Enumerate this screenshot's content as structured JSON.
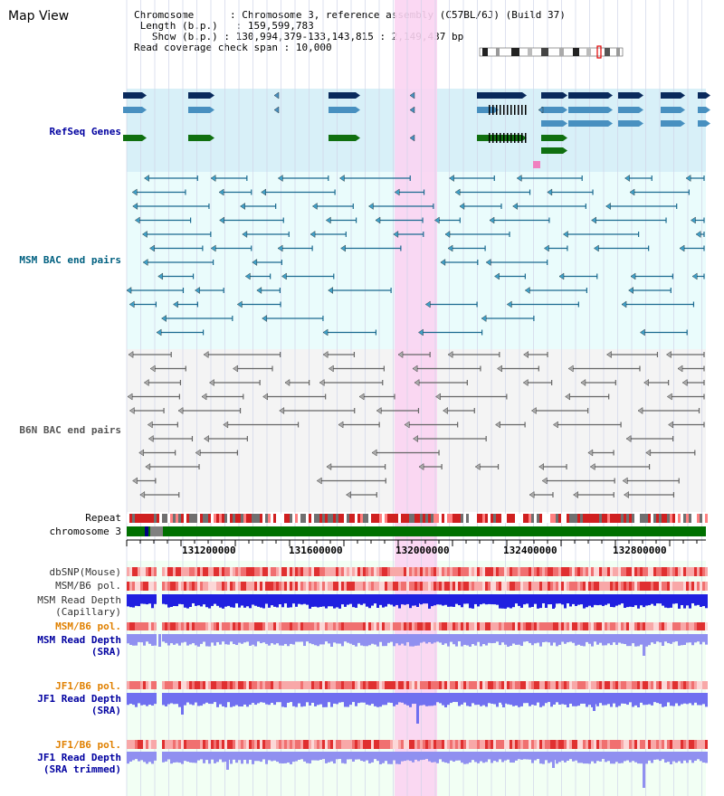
{
  "title": "Map View",
  "info": {
    "chromosome_label": "Chromosome",
    "chromosome_value": "Chromosome 3, reference assembly (C57BL/6J) (Build 37)",
    "length_label": "Length (b.p.)",
    "length_value": "159,599,783",
    "show_label": "Show (b.p.)",
    "show_value": "130,994,379-133,143,815 : 2,149,437 bp",
    "coverage_label": "Read coverage check span",
    "coverage_value": "10,000"
  },
  "tracks": {
    "refseq": "RefSeq Genes",
    "msm_bac": "MSM BAC end pairs",
    "b6n_bac": "B6N BAC end pairs",
    "repeat": "Repeat",
    "chromosome": "chromosome 3",
    "dbsnp": "dbSNP(Mouse)",
    "msm_b6_pol_1": "MSM/B6 pol.",
    "msm_read_depth_cap_1": "MSM Read Depth",
    "msm_read_depth_cap_2": "(Capillary)",
    "msm_b6_pol_2": "MSM/B6 pol.",
    "msm_read_depth_sra_1": "MSM Read Depth",
    "msm_read_depth_sra_2": "(SRA)",
    "jf1_b6_pol_1": "JF1/B6 pol.",
    "jf1_read_depth_1": "JF1 Read Depth",
    "jf1_read_depth_2": "(SRA)",
    "jf1_b6_pol_2": "JF1/B6 pol.",
    "jf1_read_depth_trim_1": "JF1 Read Depth",
    "jf1_read_depth_trim_2": "(SRA trimmed)"
  },
  "axis_ticks": [
    "131200000",
    "131600000",
    "132000000",
    "132400000",
    "132800000"
  ],
  "colors": {
    "refseq_bg": "#d8f0f8",
    "msm_bac_bg": "#eafcfc",
    "b6n_bac_bg": "#f4f4f4",
    "highlight": "#fbd4f2",
    "refseq_label": "#0000a0",
    "msm_label": "#006080",
    "b6n_label": "#555555",
    "pol_label": "#e08000",
    "depth_label": "#0000a0",
    "gene_navy": "#0a2a5c",
    "gene_blue": "#4890c0",
    "gene_green": "#107010",
    "chromosome_green": "#007000"
  }
}
